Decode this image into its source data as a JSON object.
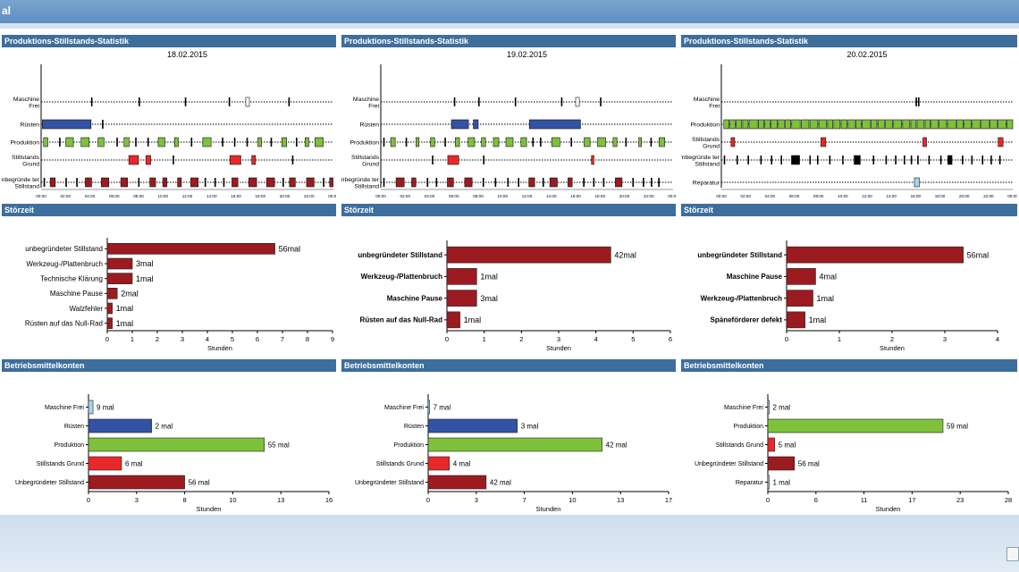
{
  "app": {
    "title": "al"
  },
  "colors": {
    "header": "#3d6e9c",
    "maroon": "#9b1b20",
    "blue": "#3352a3",
    "green": "#7ec13a",
    "red": "#e8282b",
    "light_blue": "#a9d3ef",
    "black": "#000000"
  },
  "timeline_panels": [
    {
      "title": "Produktions-Stillstands-Statistik",
      "date": "18.02.2015",
      "rows": [
        "Maschine Frei",
        "Rüsten",
        "Produktion",
        "Stillstands Grund",
        "Unbegründe ter Stillstand"
      ],
      "xticks": [
        "00:00",
        "02:00",
        "04:00",
        "06:00",
        "08:00",
        "10:00",
        "12:00",
        "14:00",
        "16:00",
        "18:00",
        "20:00",
        "22:00",
        "00:00"
      ]
    },
    {
      "title": "Produktions-Stillstands-Statistik",
      "date": "19.02.2015",
      "rows": [
        "Maschine Frei",
        "Rüsten",
        "Produktion",
        "Stillstands Grund",
        "Unbegründe ter Stillstand"
      ],
      "xticks": [
        "00:00",
        "02:00",
        "04:00",
        "06:00",
        "08:00",
        "10:00",
        "12:00",
        "14:00",
        "16:00",
        "18:00",
        "20:00",
        "22:00",
        "00:00"
      ]
    },
    {
      "title": "Produktions-Stillstands-Statistik",
      "date": "20.02.2015",
      "rows": [
        "Maschine Frei",
        "Produktion",
        "Stillstands Grund",
        "Unbegründe ter Stillstand",
        "Reparatur"
      ],
      "xticks": [
        "00:00",
        "02:00",
        "04:00",
        "06:00",
        "08:00",
        "10:00",
        "12:00",
        "14:00",
        "16:00",
        "18:00",
        "20:00",
        "22:00",
        "00:00"
      ]
    }
  ],
  "chart_data": [
    {
      "type": "bar",
      "title": "Störzeit",
      "xlabel": "Stunden",
      "xlim": [
        0,
        9
      ],
      "xticks": [
        "0",
        "1",
        "2",
        "3",
        "4",
        "5",
        "6",
        "7",
        "8",
        "9"
      ],
      "labels_bold": false,
      "categories": [
        "unbegründeter Stillstand",
        "Werkzeug-/Plattenbruch",
        "Technische Klärung",
        "Maschine Pause",
        "Walzfehler",
        "Rüsten auf das Null-Rad"
      ],
      "values": [
        6.7,
        1.0,
        1.0,
        0.4,
        0.2,
        0.2
      ],
      "data_labels": [
        "56mal",
        "3mal",
        "1mal",
        "2mal",
        "1mal",
        "1mal"
      ],
      "colors": [
        "#9b1b20",
        "#9b1b20",
        "#9b1b20",
        "#9b1b20",
        "#9b1b20",
        "#9b1b20"
      ]
    },
    {
      "type": "bar",
      "title": "Störzeit",
      "xlabel": "Stunden",
      "xlim": [
        0,
        6
      ],
      "xticks": [
        "0",
        "1",
        "2",
        "3",
        "4",
        "5",
        "6"
      ],
      "labels_bold": true,
      "categories": [
        "unbegründeter Stillstand",
        "Werkzeug-/Plattenbruch",
        "Maschine Pause",
        "Rüsten auf das Null-Rad"
      ],
      "values": [
        4.4,
        0.8,
        0.8,
        0.35
      ],
      "data_labels": [
        "42mal",
        "1mal",
        "3mal",
        "1mal"
      ],
      "colors": [
        "#9b1b20",
        "#9b1b20",
        "#9b1b20",
        "#9b1b20"
      ]
    },
    {
      "type": "bar",
      "title": "Störzeit",
      "xlabel": "Stunden",
      "xlim": [
        0,
        4
      ],
      "xticks": [
        "0",
        "1",
        "2",
        "3",
        "4"
      ],
      "labels_bold": true,
      "categories": [
        "unbegründeter Stillstand",
        "Maschine Pause",
        "Werkzeug-/Plattenbruch",
        "Späneförderer defekt"
      ],
      "values": [
        3.35,
        0.55,
        0.5,
        0.35
      ],
      "data_labels": [
        "56mal",
        "4mal",
        "1mal",
        "1mal"
      ],
      "colors": [
        "#9b1b20",
        "#9b1b20",
        "#9b1b20",
        "#9b1b20"
      ]
    },
    {
      "type": "bar",
      "title": "Betriebsmittelkonten",
      "xlabel": "Stunden",
      "xlim": [
        0,
        16
      ],
      "xticks": [
        "0",
        "3",
        "8",
        "10",
        "13",
        "16"
      ],
      "xtick_values": [
        0,
        3.2,
        6.4,
        9.6,
        12.8,
        16
      ],
      "labels_bold": false,
      "categories": [
        "Maschine Frei",
        "Rüsten",
        "Produktion",
        "Stillstands Grund",
        "Unbegründeter Stillstand"
      ],
      "values": [
        0.3,
        4.2,
        11.7,
        2.2,
        6.4
      ],
      "data_labels": [
        "9 mal",
        "2 mal",
        "55 mal",
        "6 mal",
        "56 mal"
      ],
      "colors": [
        "#a9d3ef",
        "#3352a3",
        "#7ec13a",
        "#e8282b",
        "#9b1b20"
      ]
    },
    {
      "type": "bar",
      "title": "Betriebsmittelkonten",
      "xlabel": "Stunden",
      "xlim": [
        0,
        17
      ],
      "xticks": [
        "0",
        "3",
        "7",
        "10",
        "13",
        "17"
      ],
      "xtick_values": [
        0,
        3.4,
        6.8,
        10.2,
        13.6,
        17
      ],
      "labels_bold": false,
      "categories": [
        "Maschine Frei",
        "Rüsten",
        "Produktion",
        "Stillstands Grund",
        "Unbegründeter Stillstand"
      ],
      "values": [
        0.1,
        6.3,
        12.3,
        1.5,
        4.1
      ],
      "data_labels": [
        "7 mal",
        "3 mal",
        "42 mal",
        "4 mal",
        "42 mal"
      ],
      "colors": [
        "#a9d3ef",
        "#3352a3",
        "#7ec13a",
        "#e8282b",
        "#9b1b20"
      ]
    },
    {
      "type": "bar",
      "title": "Betriebsmittelkonten",
      "xlabel": "Stunden",
      "xlim": [
        0,
        28
      ],
      "xticks": [
        "0",
        "6",
        "11",
        "17",
        "23",
        "28"
      ],
      "xtick_values": [
        0,
        5.6,
        11.2,
        16.8,
        22.4,
        28
      ],
      "labels_bold": false,
      "categories": [
        "Maschine Frei",
        "Produktion",
        "Stillstands Grund",
        "Unbegründeter Stillstand",
        "Reparatur"
      ],
      "values": [
        0.1,
        20.4,
        0.8,
        3.1,
        0.1
      ],
      "data_labels": [
        "2 mal",
        "59 mal",
        "5 mal",
        "56 mal",
        "1 mal"
      ],
      "colors": [
        "#a9d3ef",
        "#7ec13a",
        "#e8282b",
        "#9b1b20",
        "#a9d3ef"
      ]
    }
  ]
}
